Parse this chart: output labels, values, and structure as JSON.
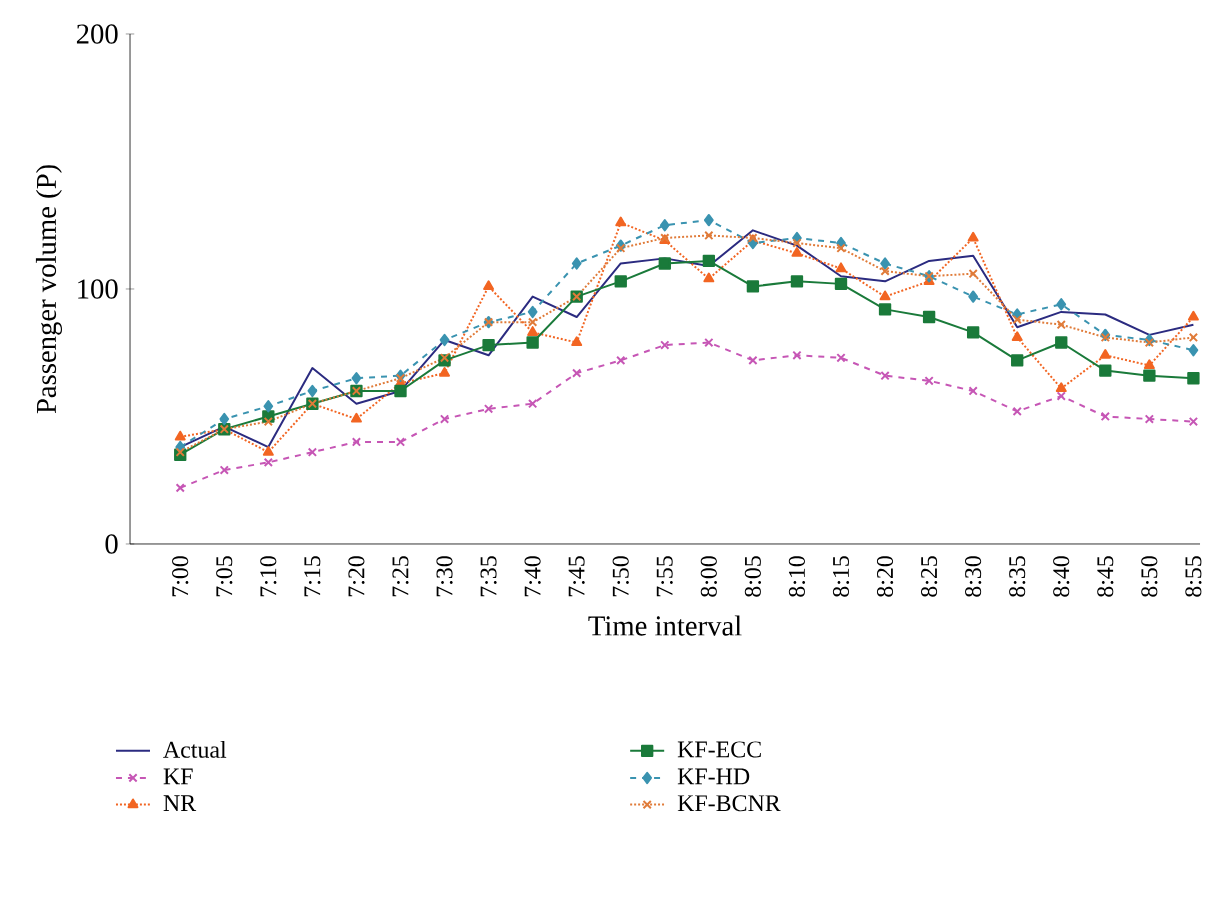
{
  "chart_data": {
    "type": "line",
    "xlabel": "Time interval",
    "ylabel": "Passenger volume (P)",
    "categories": [
      "7:00",
      "7:05",
      "7:10",
      "7:15",
      "7:20",
      "7:25",
      "7:30",
      "7:35",
      "7:40",
      "7:45",
      "7:50",
      "7:55",
      "8:00",
      "8:05",
      "8:10",
      "8:15",
      "8:20",
      "8:25",
      "8:30",
      "8:35",
      "8:40",
      "8:45",
      "8:50",
      "8:55"
    ],
    "ylim": [
      0,
      200
    ],
    "yticks": [
      0,
      100,
      200
    ],
    "grid": false,
    "legend": "bottom",
    "series": [
      {
        "name": "Actual",
        "color": "#2b2b80",
        "marker": "none",
        "line_style": "solid",
        "values": [
          38,
          46,
          38,
          69,
          55,
          60,
          80,
          74,
          97,
          89,
          110,
          112,
          109,
          123,
          117,
          105,
          103,
          111,
          113,
          85,
          91,
          90,
          82,
          86
        ]
      },
      {
        "name": "KF",
        "color": "#c656b5",
        "marker": "cross",
        "line_style": "dashed",
        "values": [
          22,
          29,
          32,
          36,
          40,
          40,
          49,
          53,
          55,
          67,
          72,
          78,
          79,
          72,
          74,
          73,
          66,
          64,
          60,
          52,
          58,
          50,
          49,
          48
        ]
      },
      {
        "name": "NR",
        "color": "#f26522",
        "marker": "triangle",
        "line_style": "dotted",
        "values": [
          42,
          45,
          36,
          55,
          49,
          63,
          67,
          101,
          83,
          79,
          126,
          119,
          104,
          119,
          114,
          108,
          97,
          103,
          120,
          81,
          61,
          74,
          70,
          89
        ]
      },
      {
        "name": "KF-ECC",
        "color": "#1a7a3a",
        "marker": "square",
        "line_style": "solid",
        "values": [
          35,
          45,
          50,
          55,
          60,
          60,
          72,
          78,
          79,
          97,
          103,
          110,
          111,
          101,
          103,
          102,
          92,
          89,
          83,
          72,
          79,
          68,
          66,
          65
        ]
      },
      {
        "name": "KF-HD",
        "color": "#3a93b0",
        "marker": "diamond",
        "line_style": "dashed",
        "values": [
          38,
          49,
          54,
          60,
          65,
          66,
          80,
          87,
          91,
          110,
          117,
          125,
          127,
          118,
          120,
          118,
          110,
          105,
          97,
          90,
          94,
          82,
          80,
          76
        ]
      },
      {
        "name": "KF-BCNR",
        "color": "#e07b39",
        "marker": "cross",
        "line_style": "dotted",
        "values": [
          36,
          45,
          48,
          55,
          60,
          65,
          73,
          87,
          87,
          97,
          116,
          120,
          121,
          120,
          118,
          116,
          107,
          105,
          106,
          88,
          86,
          81,
          79,
          81
        ]
      }
    ]
  }
}
